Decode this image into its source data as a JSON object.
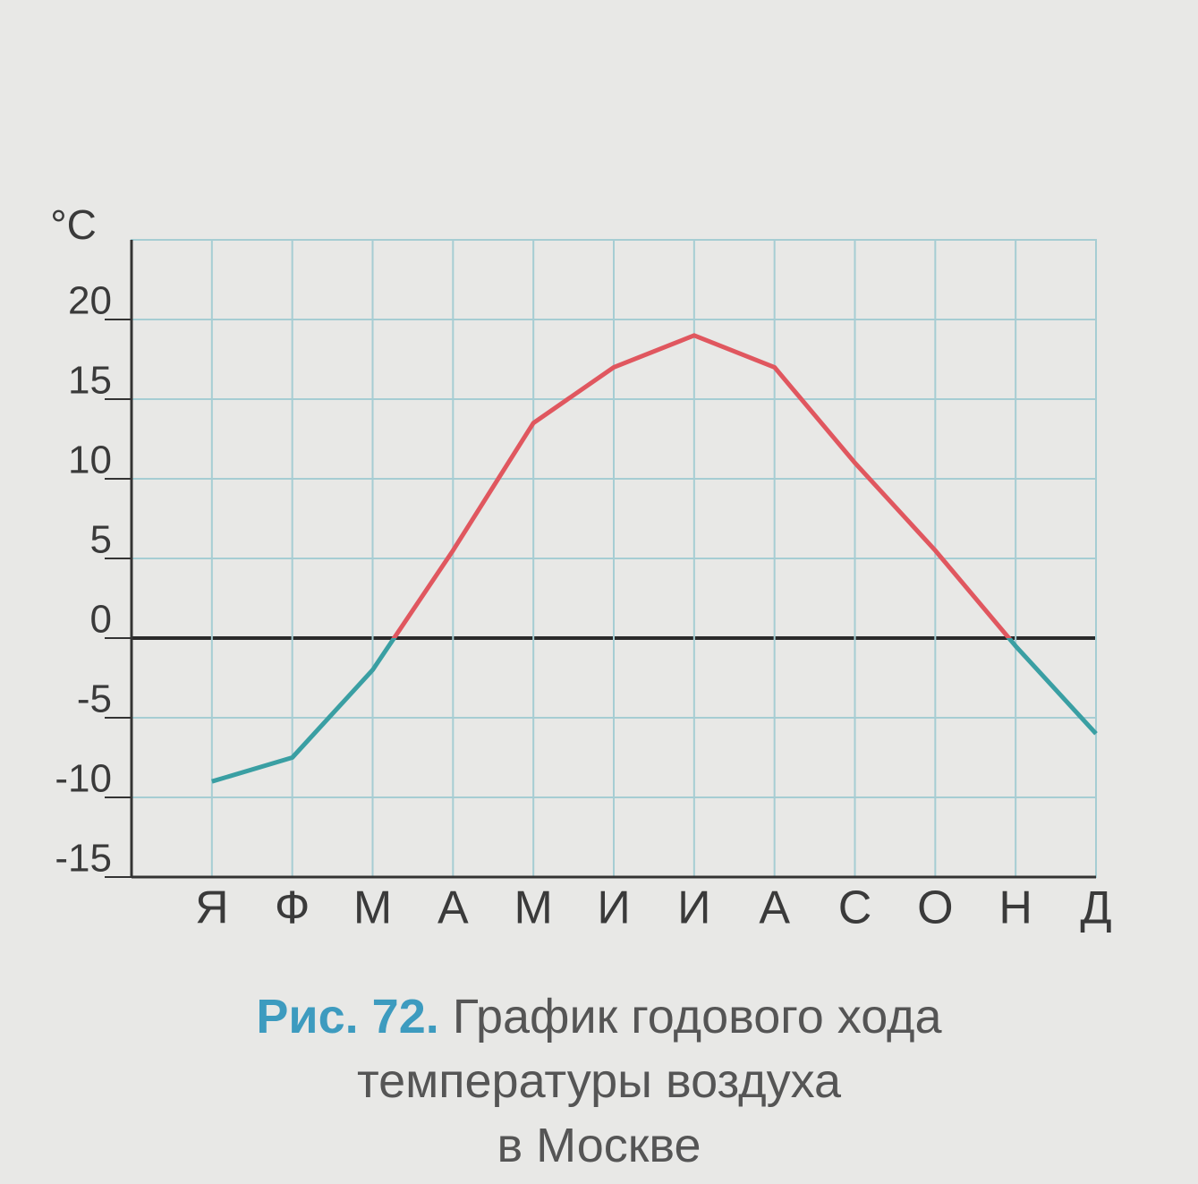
{
  "chart_data": {
    "type": "line",
    "y_label": "°C",
    "categories": [
      "Я",
      "Ф",
      "М",
      "А",
      "М",
      "И",
      "И",
      "А",
      "С",
      "О",
      "Н",
      "Д"
    ],
    "series": [
      {
        "name": "Температура",
        "values": [
          -9,
          -7.5,
          -2,
          5.5,
          13.5,
          17,
          19,
          17,
          11,
          5.5,
          -0.5,
          -6
        ]
      }
    ],
    "positive_color": "#e0575f",
    "negative_color": "#3a9fa3",
    "ylim": [
      -15,
      25
    ],
    "yticks": [
      -15,
      -10,
      -5,
      0,
      5,
      10,
      15,
      20
    ],
    "grid": true,
    "caption_label": "Рис. 72.",
    "caption_lines": [
      "График годового хода",
      "температуры воздуха",
      "в Москве"
    ]
  }
}
